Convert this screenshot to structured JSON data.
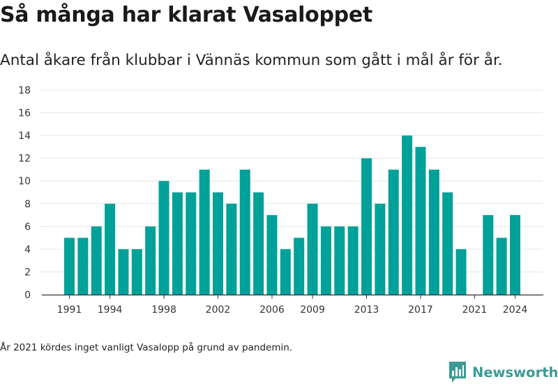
{
  "title": "Så många har klarat Vasaloppet",
  "subtitle": "Antal åkare från klubbar i Vännäs kommun som gått i mål år för år.",
  "footnote": "År 2021 kördes inget vanligt Vasalopp på grund av pandemin.",
  "brand": "Newsworthy",
  "colors": {
    "bar": "#00a199",
    "brand": "#3a9b94",
    "grid": "#e4e4e4",
    "axis": "#333333"
  },
  "chart_data": {
    "type": "bar",
    "title": "Så många har klarat Vasaloppet",
    "subtitle": "Antal åkare från klubbar i Vännäs kommun som gått i mål år för år.",
    "xlabel": "",
    "ylabel": "",
    "categories": [
      1991,
      1992,
      1993,
      1994,
      1995,
      1996,
      1997,
      1998,
      1999,
      2000,
      2001,
      2002,
      2003,
      2004,
      2005,
      2006,
      2007,
      2008,
      2009,
      2010,
      2011,
      2012,
      2013,
      2014,
      2015,
      2016,
      2017,
      2018,
      2019,
      2020,
      2021,
      2022,
      2023,
      2024
    ],
    "values": [
      5,
      5,
      6,
      8,
      4,
      4,
      6,
      10,
      9,
      9,
      11,
      9,
      8,
      11,
      9,
      7,
      4,
      5,
      8,
      6,
      6,
      6,
      12,
      8,
      11,
      14,
      13,
      11,
      9,
      4,
      null,
      7,
      5,
      7
    ],
    "ylim": [
      0,
      18
    ],
    "yticks": [
      0,
      2,
      4,
      6,
      8,
      10,
      12,
      14,
      16,
      18
    ],
    "xticks": [
      1991,
      1994,
      1998,
      2002,
      2006,
      2009,
      2013,
      2017,
      2021,
      2024
    ],
    "grid": true,
    "legend": "none"
  }
}
